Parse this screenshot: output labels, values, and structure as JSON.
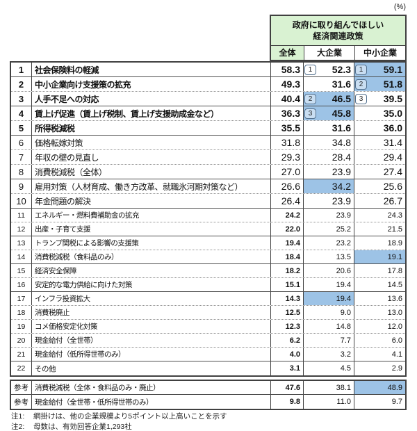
{
  "unit_label": "(%)",
  "header": {
    "title_line1": "政府に取り組んでほしい",
    "title_line2": "経済関連政策",
    "columns": [
      "全体",
      "大企業",
      "中小企業"
    ]
  },
  "colors": {
    "header_green": "#d9f2d2",
    "highlight_blue": "#9dc3e6",
    "badge_border": "#52708e"
  },
  "rows": [
    {
      "rank": "1",
      "label": "社会保険料の軽減",
      "zentai": "58.3",
      "dai": "52.3",
      "dai_badge": "1",
      "dai_hl": false,
      "chusho": "59.1",
      "chusho_badge": "1",
      "chusho_hl": true,
      "tier": 1,
      "divider": "solid"
    },
    {
      "rank": "2",
      "label": "中小企業向け支援策の拡充",
      "zentai": "49.3",
      "dai": "31.6",
      "dai_badge": null,
      "dai_hl": false,
      "chusho": "51.8",
      "chusho_badge": "2",
      "chusho_hl": true,
      "tier": 1,
      "divider": "dotted"
    },
    {
      "rank": "3",
      "label": "人手不足への対応",
      "zentai": "40.4",
      "dai": "46.5",
      "dai_badge": "2",
      "dai_hl": true,
      "chusho": "39.5",
      "chusho_badge": "3",
      "chusho_hl": false,
      "tier": 1,
      "divider": "solid"
    },
    {
      "rank": "4",
      "label": "賃上げ促進（賃上げ税制、賃上げ支援助成金など）",
      "zentai": "36.3",
      "dai": "45.8",
      "dai_badge": "3",
      "dai_hl": true,
      "chusho": "35.0",
      "chusho_badge": null,
      "chusho_hl": false,
      "tier": 1,
      "divider": "dotted"
    },
    {
      "rank": "5",
      "label": "所得税減税",
      "zentai": "35.5",
      "dai": "31.6",
      "dai_badge": null,
      "dai_hl": false,
      "chusho": "36.0",
      "chusho_badge": null,
      "chusho_hl": false,
      "tier": 1,
      "divider": "solid"
    },
    {
      "rank": "6",
      "label": "価格転嫁対策",
      "zentai": "31.8",
      "dai": "34.8",
      "dai_badge": null,
      "dai_hl": false,
      "chusho": "31.4",
      "chusho_badge": null,
      "chusho_hl": false,
      "tier": 2,
      "divider": "dotted"
    },
    {
      "rank": "7",
      "label": "年収の壁の見直し",
      "zentai": "29.3",
      "dai": "28.4",
      "dai_badge": null,
      "dai_hl": false,
      "chusho": "29.4",
      "chusho_badge": null,
      "chusho_hl": false,
      "tier": 2,
      "divider": "dotted"
    },
    {
      "rank": "8",
      "label": "消費税減税（全体）",
      "zentai": "27.0",
      "dai": "23.9",
      "dai_badge": null,
      "dai_hl": false,
      "chusho": "27.4",
      "chusho_badge": null,
      "chusho_hl": false,
      "tier": 2,
      "divider": "solid"
    },
    {
      "rank": "9",
      "label": "雇用対策（人材育成、働き方改革、就職氷河期対策など）",
      "zentai": "26.6",
      "dai": "34.2",
      "dai_badge": null,
      "dai_hl": true,
      "chusho": "25.6",
      "chusho_badge": null,
      "chusho_hl": false,
      "tier": 2,
      "divider": "dotted"
    },
    {
      "rank": "10",
      "label": "年金問題の解決",
      "zentai": "26.4",
      "dai": "23.9",
      "dai_badge": null,
      "dai_hl": false,
      "chusho": "26.7",
      "chusho_badge": null,
      "chusho_hl": false,
      "tier": 2,
      "divider": "solid"
    },
    {
      "rank": "11",
      "label": "エネルギー・燃料費補助金の拡充",
      "zentai": "24.2",
      "dai": "23.9",
      "dai_badge": null,
      "dai_hl": false,
      "chusho": "24.3",
      "chusho_badge": null,
      "chusho_hl": false,
      "tier": 3,
      "divider": "dotted"
    },
    {
      "rank": "12",
      "label": "出産・子育て支援",
      "zentai": "22.0",
      "dai": "25.2",
      "dai_badge": null,
      "dai_hl": false,
      "chusho": "21.5",
      "chusho_badge": null,
      "chusho_hl": false,
      "tier": 3,
      "divider": "solid"
    },
    {
      "rank": "13",
      "label": "トランプ関税による影響の支援策",
      "zentai": "19.4",
      "dai": "23.2",
      "dai_badge": null,
      "dai_hl": false,
      "chusho": "18.9",
      "chusho_badge": null,
      "chusho_hl": false,
      "tier": 3,
      "divider": "dotted"
    },
    {
      "rank": "14",
      "label": "消費税減税（食料品のみ）",
      "zentai": "18.4",
      "dai": "13.5",
      "dai_badge": null,
      "dai_hl": false,
      "chusho": "19.1",
      "chusho_badge": null,
      "chusho_hl": true,
      "tier": 3,
      "divider": "solid"
    },
    {
      "rank": "15",
      "label": "経済安全保障",
      "zentai": "18.2",
      "dai": "20.6",
      "dai_badge": null,
      "dai_hl": false,
      "chusho": "17.8",
      "chusho_badge": null,
      "chusho_hl": false,
      "tier": 3,
      "divider": "dotted"
    },
    {
      "rank": "16",
      "label": "安定的な電力供給に向けた対策",
      "zentai": "15.1",
      "dai": "19.4",
      "dai_badge": null,
      "dai_hl": false,
      "chusho": "14.5",
      "chusho_badge": null,
      "chusho_hl": false,
      "tier": 3,
      "divider": "solid"
    },
    {
      "rank": "17",
      "label": "インフラ投資拡大",
      "zentai": "14.3",
      "dai": "19.4",
      "dai_badge": null,
      "dai_hl": true,
      "chusho": "13.6",
      "chusho_badge": null,
      "chusho_hl": false,
      "tier": 3,
      "divider": "dotted"
    },
    {
      "rank": "18",
      "label": "消費税廃止",
      "zentai": "12.5",
      "dai": "9.0",
      "dai_badge": null,
      "dai_hl": false,
      "chusho": "13.0",
      "chusho_badge": null,
      "chusho_hl": false,
      "tier": 3,
      "divider": "dotted"
    },
    {
      "rank": "19",
      "label": "コメ価格安定化対策",
      "zentai": "12.3",
      "dai": "14.8",
      "dai_badge": null,
      "dai_hl": false,
      "chusho": "12.0",
      "chusho_badge": null,
      "chusho_hl": false,
      "tier": 3,
      "divider": "dotted"
    },
    {
      "rank": "20",
      "label": "現金給付（全世帯）",
      "zentai": "6.2",
      "dai": "7.7",
      "dai_badge": null,
      "dai_hl": false,
      "chusho": "6.0",
      "chusho_badge": null,
      "chusho_hl": false,
      "tier": 3,
      "divider": "dotted"
    },
    {
      "rank": "21",
      "label": "現金給付（低所得世帯のみ）",
      "zentai": "4.0",
      "dai": "3.2",
      "dai_badge": null,
      "dai_hl": false,
      "chusho": "4.1",
      "chusho_badge": null,
      "chusho_hl": false,
      "tier": 3,
      "divider": "solid"
    },
    {
      "rank": "22",
      "label": "その他",
      "zentai": "3.1",
      "dai": "4.5",
      "dai_badge": null,
      "dai_hl": false,
      "chusho": "2.9",
      "chusho_badge": null,
      "chusho_hl": false,
      "tier": 3,
      "divider": "none"
    }
  ],
  "reference_rows": [
    {
      "rank": "参考",
      "label": "消費税減税（全体・食料品のみ・廃止）",
      "zentai": "47.6",
      "dai": "38.1",
      "dai_badge": null,
      "dai_hl": false,
      "chusho": "48.9",
      "chusho_badge": null,
      "chusho_hl": true,
      "tier": 3,
      "divider": "solid"
    },
    {
      "rank": "参考",
      "label": "現金給付（全世帯・低所得世帯のみ）",
      "zentai": "9.8",
      "dai": "11.0",
      "dai_badge": null,
      "dai_hl": false,
      "chusho": "9.7",
      "chusho_badge": null,
      "chusho_hl": false,
      "tier": 3,
      "divider": "none"
    }
  ],
  "notes": [
    {
      "prefix": "注1:",
      "text": "網掛けは、他の企業規模より5ポイント以上高いことを示す"
    },
    {
      "prefix": "注2:",
      "text": "母数は、有効回答企業1,293社"
    }
  ]
}
